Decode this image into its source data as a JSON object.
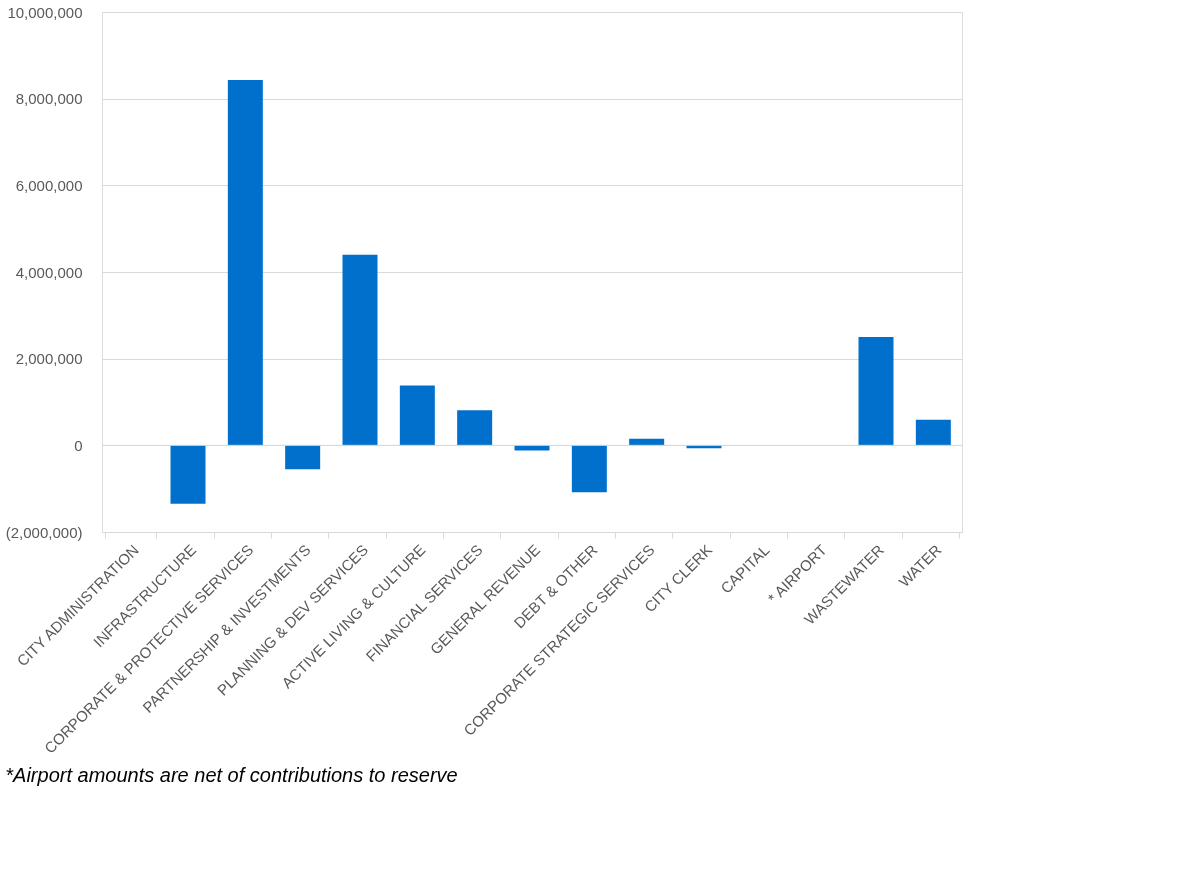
{
  "chart_data": {
    "type": "bar",
    "categories": [
      "CITY ADMINISTRATION",
      "INFRASTRUCTURE",
      "CORPORATE & PROTECTIVE SERVICES",
      "PARTNERSHIP & INVESTMENTS",
      "PLANNING & DEV SERVICES",
      "ACTIVE LIVING & CULTURE",
      "FINANCIAL SERVICES",
      "GENERAL REVENUE",
      "DEBT & OTHER",
      "CORPORATE STRATEGIC SERVICES",
      "CITY CLERK",
      "CAPITAL",
      "* AIRPORT",
      "WASTEWATER",
      "WATER"
    ],
    "series": [
      {
        "color": "#0070cc",
        "values": [
          0,
          -1350000,
          8430000,
          -550000,
          4400000,
          1380000,
          810000,
          -120000,
          -1080000,
          150000,
          -70000,
          0,
          0,
          2500000,
          590000
        ]
      }
    ],
    "ylim": [
      -2000000,
      10000000
    ],
    "yticks": [
      {
        "value": -2000000,
        "label": "(2,000,000)"
      },
      0,
      {
        "value": 2000000,
        "label": "2,000,000"
      },
      {
        "value": 4000000,
        "label": "4,000,000"
      },
      {
        "value": 6000000,
        "label": "6,000,000"
      },
      {
        "value": 8000000,
        "label": "8,000,000"
      },
      {
        "value": 10000000,
        "label": "10,000,000"
      }
    ],
    "grid": "y",
    "annotations": [
      "*Airport amounts are net of contributions to reserve"
    ]
  }
}
